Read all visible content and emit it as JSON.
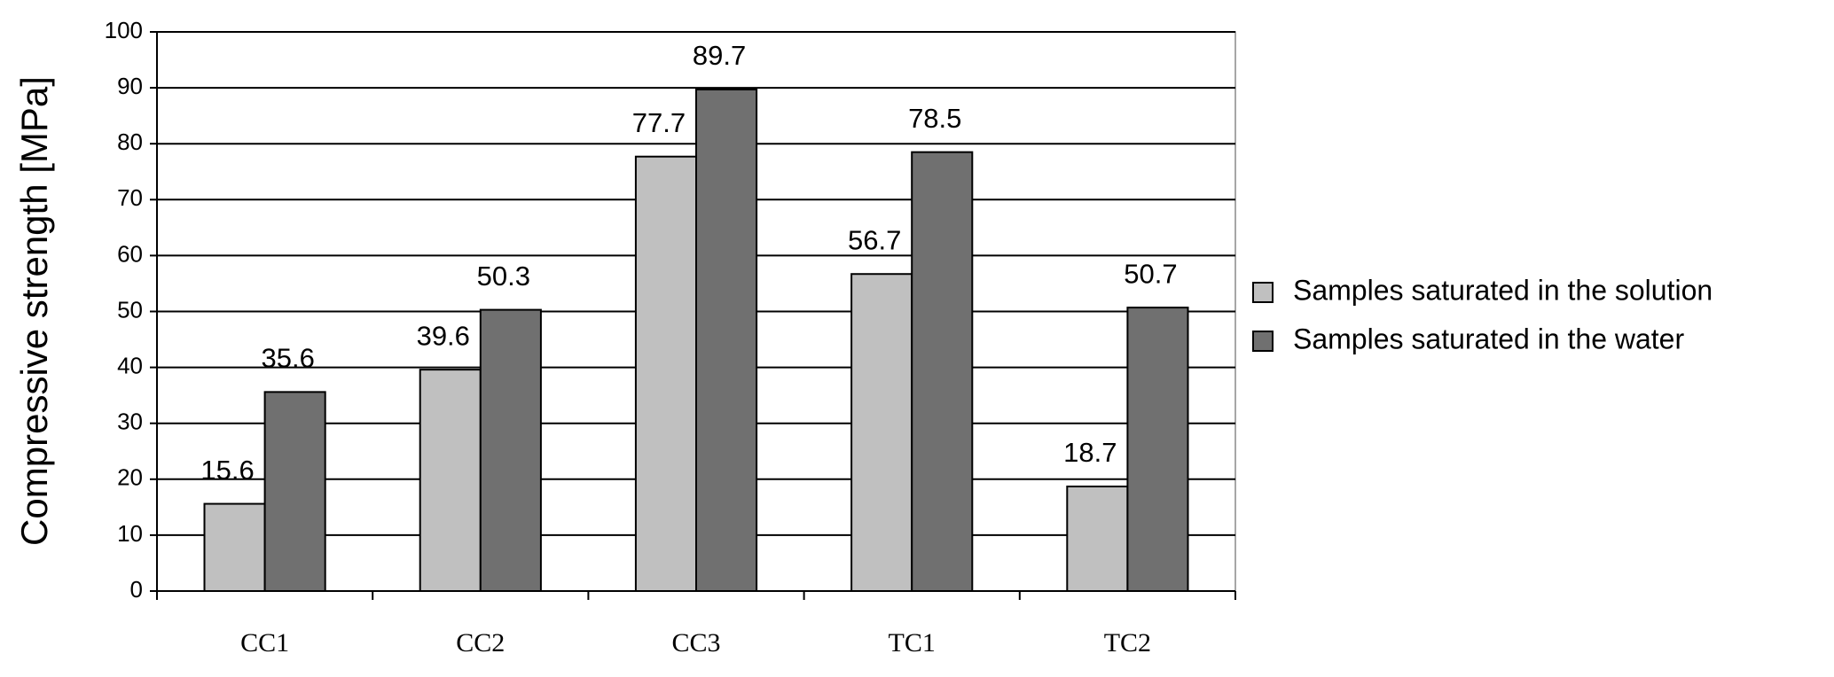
{
  "chart_data": {
    "type": "bar",
    "y_label": "Compressive strength [MPa]",
    "categories": [
      "CC1",
      "CC2",
      "CC3",
      "TC1",
      "TC2"
    ],
    "series": [
      {
        "name": "Samples saturated in the solution",
        "color": "#c0c0c0",
        "values": [
          15.6,
          39.6,
          77.7,
          56.7,
          18.7
        ]
      },
      {
        "name": "Samples saturated in the water",
        "color": "#707070",
        "values": [
          35.6,
          50.3,
          89.7,
          78.5,
          50.7
        ]
      }
    ],
    "ylim": [
      0,
      100
    ],
    "yticks": [
      0,
      10,
      20,
      30,
      40,
      50,
      60,
      70,
      80,
      90,
      100
    ],
    "grid": true
  }
}
